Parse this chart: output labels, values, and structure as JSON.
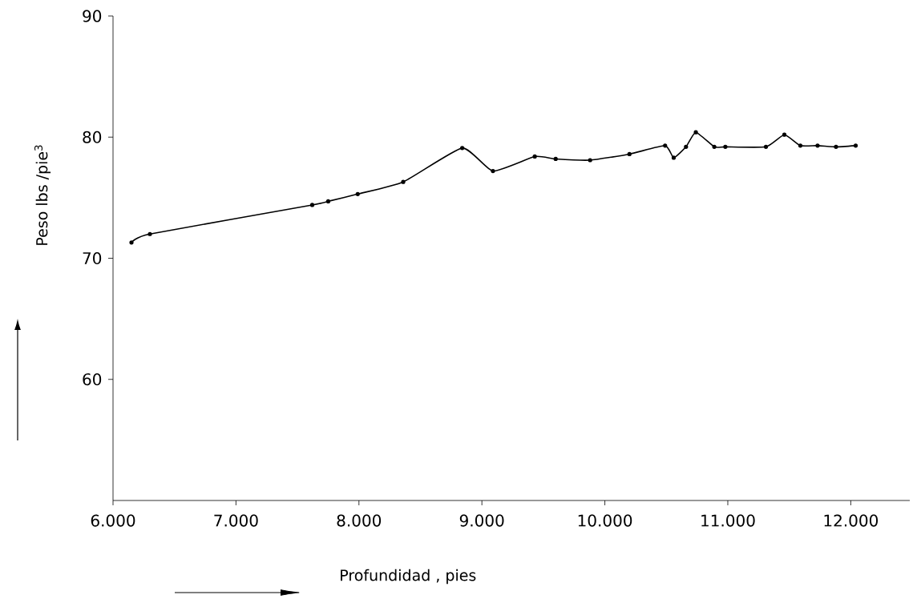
{
  "chart_data": {
    "type": "line",
    "xlabel": "Profundidad , pies",
    "ylabel": "Peso  lbs /pie$^{3}$",
    "x": [
      6150,
      6300,
      7620,
      7750,
      7990,
      8360,
      8840,
      9090,
      9430,
      9600,
      9880,
      10200,
      10490,
      10560,
      10660,
      10740,
      10890,
      10980,
      11310,
      11460,
      11590,
      11730,
      11880,
      12040
    ],
    "series": [
      {
        "color": "#000000",
        "values": [
          71.3,
          72.0,
          74.4,
          74.7,
          75.3,
          76.3,
          79.1,
          77.2,
          78.4,
          78.2,
          78.1,
          78.6,
          79.3,
          78.3,
          79.2,
          80.4,
          79.2,
          79.2,
          79.2,
          80.2,
          79.3,
          79.3,
          79.2,
          79.3
        ]
      }
    ],
    "xlim": [
      6000,
      12480
    ],
    "ylim": [
      50,
      90
    ],
    "xticks": [
      {
        "value": 6000,
        "label": "6.000"
      },
      {
        "value": 7000,
        "label": "7.000"
      },
      {
        "value": 8000,
        "label": "8.000"
      },
      {
        "value": 9000,
        "label": "9.000"
      },
      {
        "value": 10000,
        "label": "10.000"
      },
      {
        "value": 11000,
        "label": "11.000"
      },
      {
        "value": 12000,
        "label": "12.000"
      }
    ],
    "yticks": [
      60,
      70,
      80,
      90
    ],
    "marker": "circle",
    "line_style": "solid",
    "grid": false
  }
}
